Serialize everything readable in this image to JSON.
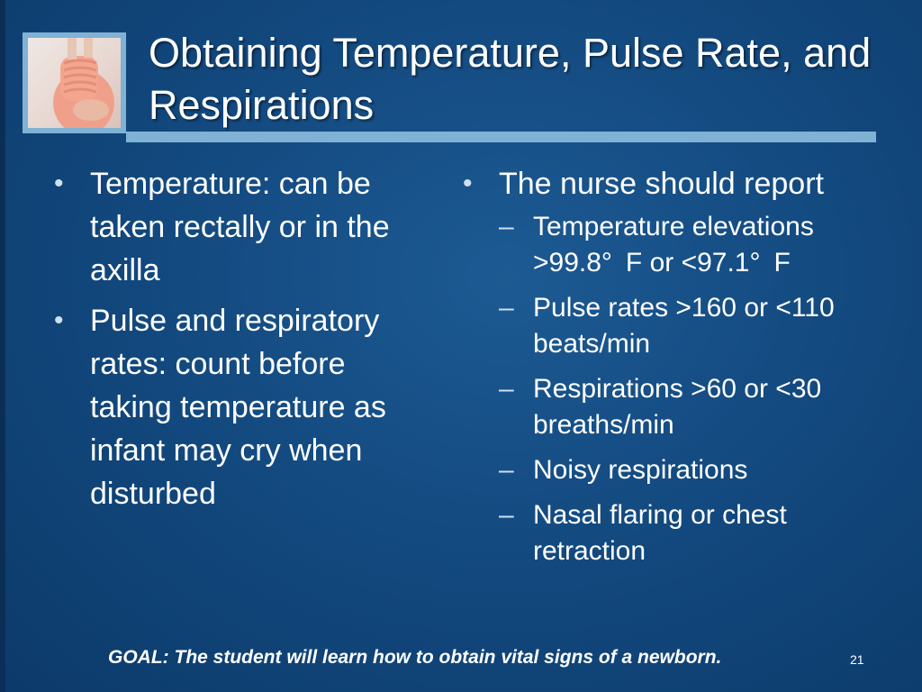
{
  "slide": {
    "title": "Obtaining Temperature, Pulse Rate, and Respirations",
    "photo_icon": "pregnant-woman-photo",
    "left_column": {
      "bullets": [
        {
          "text": "Temperature: can be taken rectally or in the axilla"
        },
        {
          "text": "Pulse and respiratory rates: count before taking temperature as infant may cry when disturbed"
        }
      ]
    },
    "right_column": {
      "heading": "The nurse should report",
      "items": [
        {
          "text": "Temperature elevations >99.8° F or <97.1° F"
        },
        {
          "text": "Pulse rates >160 or <110 beats/min"
        },
        {
          "text": "Respirations >60 or <30 breaths/min"
        },
        {
          "text": "Noisy respirations"
        },
        {
          "text": "Nasal flaring or chest retraction"
        }
      ]
    },
    "goal": "GOAL:  The student will learn how to obtain vital signs of a newborn.",
    "page_number": "21",
    "bullet_glyph": "•",
    "dash_glyph": "–",
    "colors": {
      "background": "#134a80",
      "accent": "#7fb2d4",
      "text": "#ffffff"
    }
  }
}
